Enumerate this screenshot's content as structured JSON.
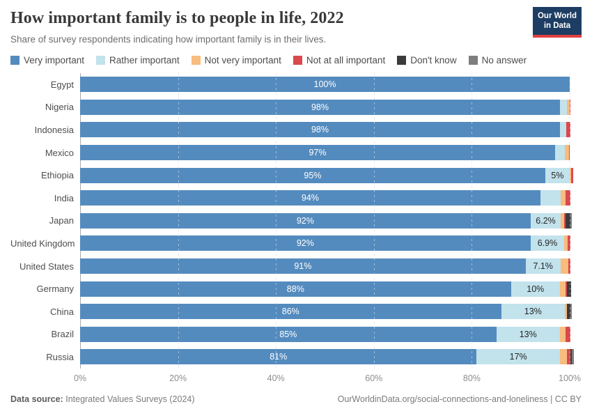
{
  "header": {
    "title": "How important family is to people in life, 2022",
    "subtitle": "Share of survey respondents indicating how important family is in their lives.",
    "logo_line1": "Our World",
    "logo_line2": "in Data"
  },
  "colors": {
    "very": "#548bbe",
    "rather": "#c2e2ec",
    "not_very": "#f8bc7e",
    "not_at_all": "#d94a4e",
    "dont_know": "#3b3b3b",
    "no_answer": "#7e7e7e",
    "logo_bg": "#1d3d63",
    "logo_underline": "#e0403f"
  },
  "legend": {
    "items": [
      {
        "id": "very",
        "label": "Very important"
      },
      {
        "id": "rather",
        "label": "Rather important"
      },
      {
        "id": "not_very",
        "label": "Not very important"
      },
      {
        "id": "not_at_all",
        "label": "Not at all important"
      },
      {
        "id": "dont_know",
        "label": "Don't know"
      },
      {
        "id": "no_answer",
        "label": "No answer"
      }
    ]
  },
  "chart_data": {
    "type": "bar",
    "orientation": "horizontal-stacked",
    "categories": [
      "Egypt",
      "Nigeria",
      "Indonesia",
      "Mexico",
      "Ethiopia",
      "India",
      "Japan",
      "United Kingdom",
      "United States",
      "Germany",
      "China",
      "Brazil",
      "Russia"
    ],
    "series": [
      {
        "id": "very",
        "name": "Very important",
        "values": [
          100,
          98,
          98,
          97,
          95,
          94,
          92,
          92,
          91,
          88,
          86,
          85,
          81
        ]
      },
      {
        "id": "rather",
        "name": "Rather important",
        "values": [
          0,
          1.5,
          1.3,
          2.0,
          5.0,
          4.2,
          6.2,
          6.9,
          7.1,
          10,
          13,
          13,
          17
        ]
      },
      {
        "id": "not_very",
        "name": "Not very important",
        "values": [
          0,
          0.5,
          0,
          0.8,
          0.25,
          1.0,
          0.6,
          0.7,
          1.6,
          1.2,
          0.5,
          1.2,
          1.5
        ]
      },
      {
        "id": "not_at_all",
        "name": "Not at all important",
        "values": [
          0,
          0.2,
          0.9,
          0.2,
          0.45,
          1.0,
          0.3,
          0.5,
          0.4,
          0.2,
          0,
          0.9,
          0.6
        ]
      },
      {
        "id": "dont_know",
        "name": "Don't know",
        "values": [
          0,
          0,
          0,
          0,
          0,
          0,
          1.0,
          0,
          0,
          0.9,
          0.7,
          0,
          0.4
        ]
      },
      {
        "id": "no_answer",
        "name": "No answer",
        "values": [
          0,
          0,
          0,
          0,
          0,
          0,
          0.4,
          0,
          0,
          0,
          0.2,
          0,
          0.3
        ]
      }
    ],
    "bar_labels": {
      "very": [
        "100%",
        "98%",
        "98%",
        "97%",
        "95%",
        "94%",
        "92%",
        "92%",
        "91%",
        "88%",
        "86%",
        "85%",
        "81%"
      ],
      "rather": [
        "",
        "",
        "",
        "",
        "5%",
        "",
        "6.2%",
        "6.9%",
        "7.1%",
        "10%",
        "13%",
        "13%",
        "17%"
      ]
    },
    "title": "How important family is to people in life, 2022",
    "xlabel": "",
    "ylabel": "",
    "xlim": [
      0,
      100
    ],
    "x_ticks": [
      {
        "value": 0,
        "label": "0%"
      },
      {
        "value": 20,
        "label": "20%"
      },
      {
        "value": 40,
        "label": "40%"
      },
      {
        "value": 60,
        "label": "60%"
      },
      {
        "value": 80,
        "label": "80%"
      },
      {
        "value": 100,
        "label": "100%"
      }
    ],
    "grid": "vertical-dashed",
    "legend_position": "top"
  },
  "footer": {
    "source_label": "Data source:",
    "source_value": "Integrated Values Surveys (2024)",
    "link": "OurWorldinData.org/social-connections-and-loneliness | CC BY"
  }
}
